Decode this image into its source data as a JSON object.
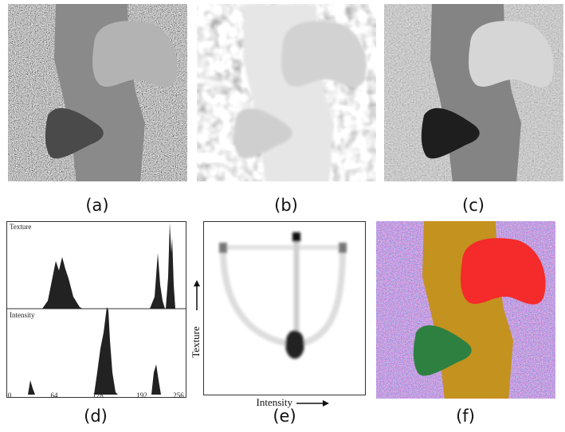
{
  "panels": [
    {
      "caption": "(a)"
    },
    {
      "caption": "(b)"
    },
    {
      "caption": "(c)"
    },
    {
      "caption": "(d)"
    },
    {
      "caption": "(e)"
    },
    {
      "caption": "(f)"
    }
  ],
  "histogram": {
    "top_label": "Texture",
    "bottom_label": "Intensity",
    "x_tick_labels": [
      "0",
      "64",
      "128",
      "192",
      "256"
    ]
  },
  "joint_histogram": {
    "y_label": "Texture",
    "x_label": "Intensity"
  }
}
